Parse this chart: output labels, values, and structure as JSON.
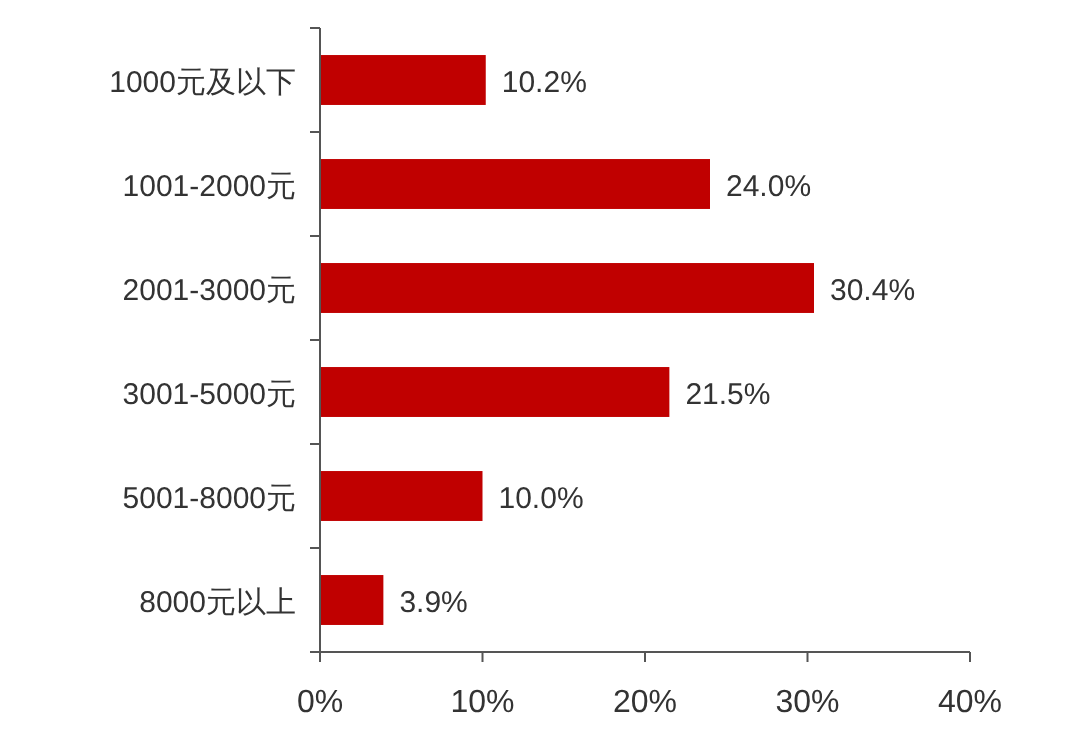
{
  "chart_data": {
    "type": "bar",
    "orientation": "horizontal",
    "categories": [
      "1000元及以下",
      "1001-2000元",
      "2001-3000元",
      "3001-5000元",
      "5001-8000元",
      "8000元以上"
    ],
    "values": [
      10.2,
      24.0,
      30.4,
      21.5,
      10.0,
      3.9
    ],
    "value_labels": [
      "10.2%",
      "24.0%",
      "30.4%",
      "21.5%",
      "10.0%",
      "3.9%"
    ],
    "color": "#c00000",
    "xlim": [
      0,
      40
    ],
    "xticks": [
      {
        "value": 0,
        "label": "0%"
      },
      {
        "value": 10,
        "label": "10%"
      },
      {
        "value": 20,
        "label": "20%"
      },
      {
        "value": 30,
        "label": "30%"
      },
      {
        "value": 40,
        "label": "40%"
      }
    ],
    "grid": false
  }
}
